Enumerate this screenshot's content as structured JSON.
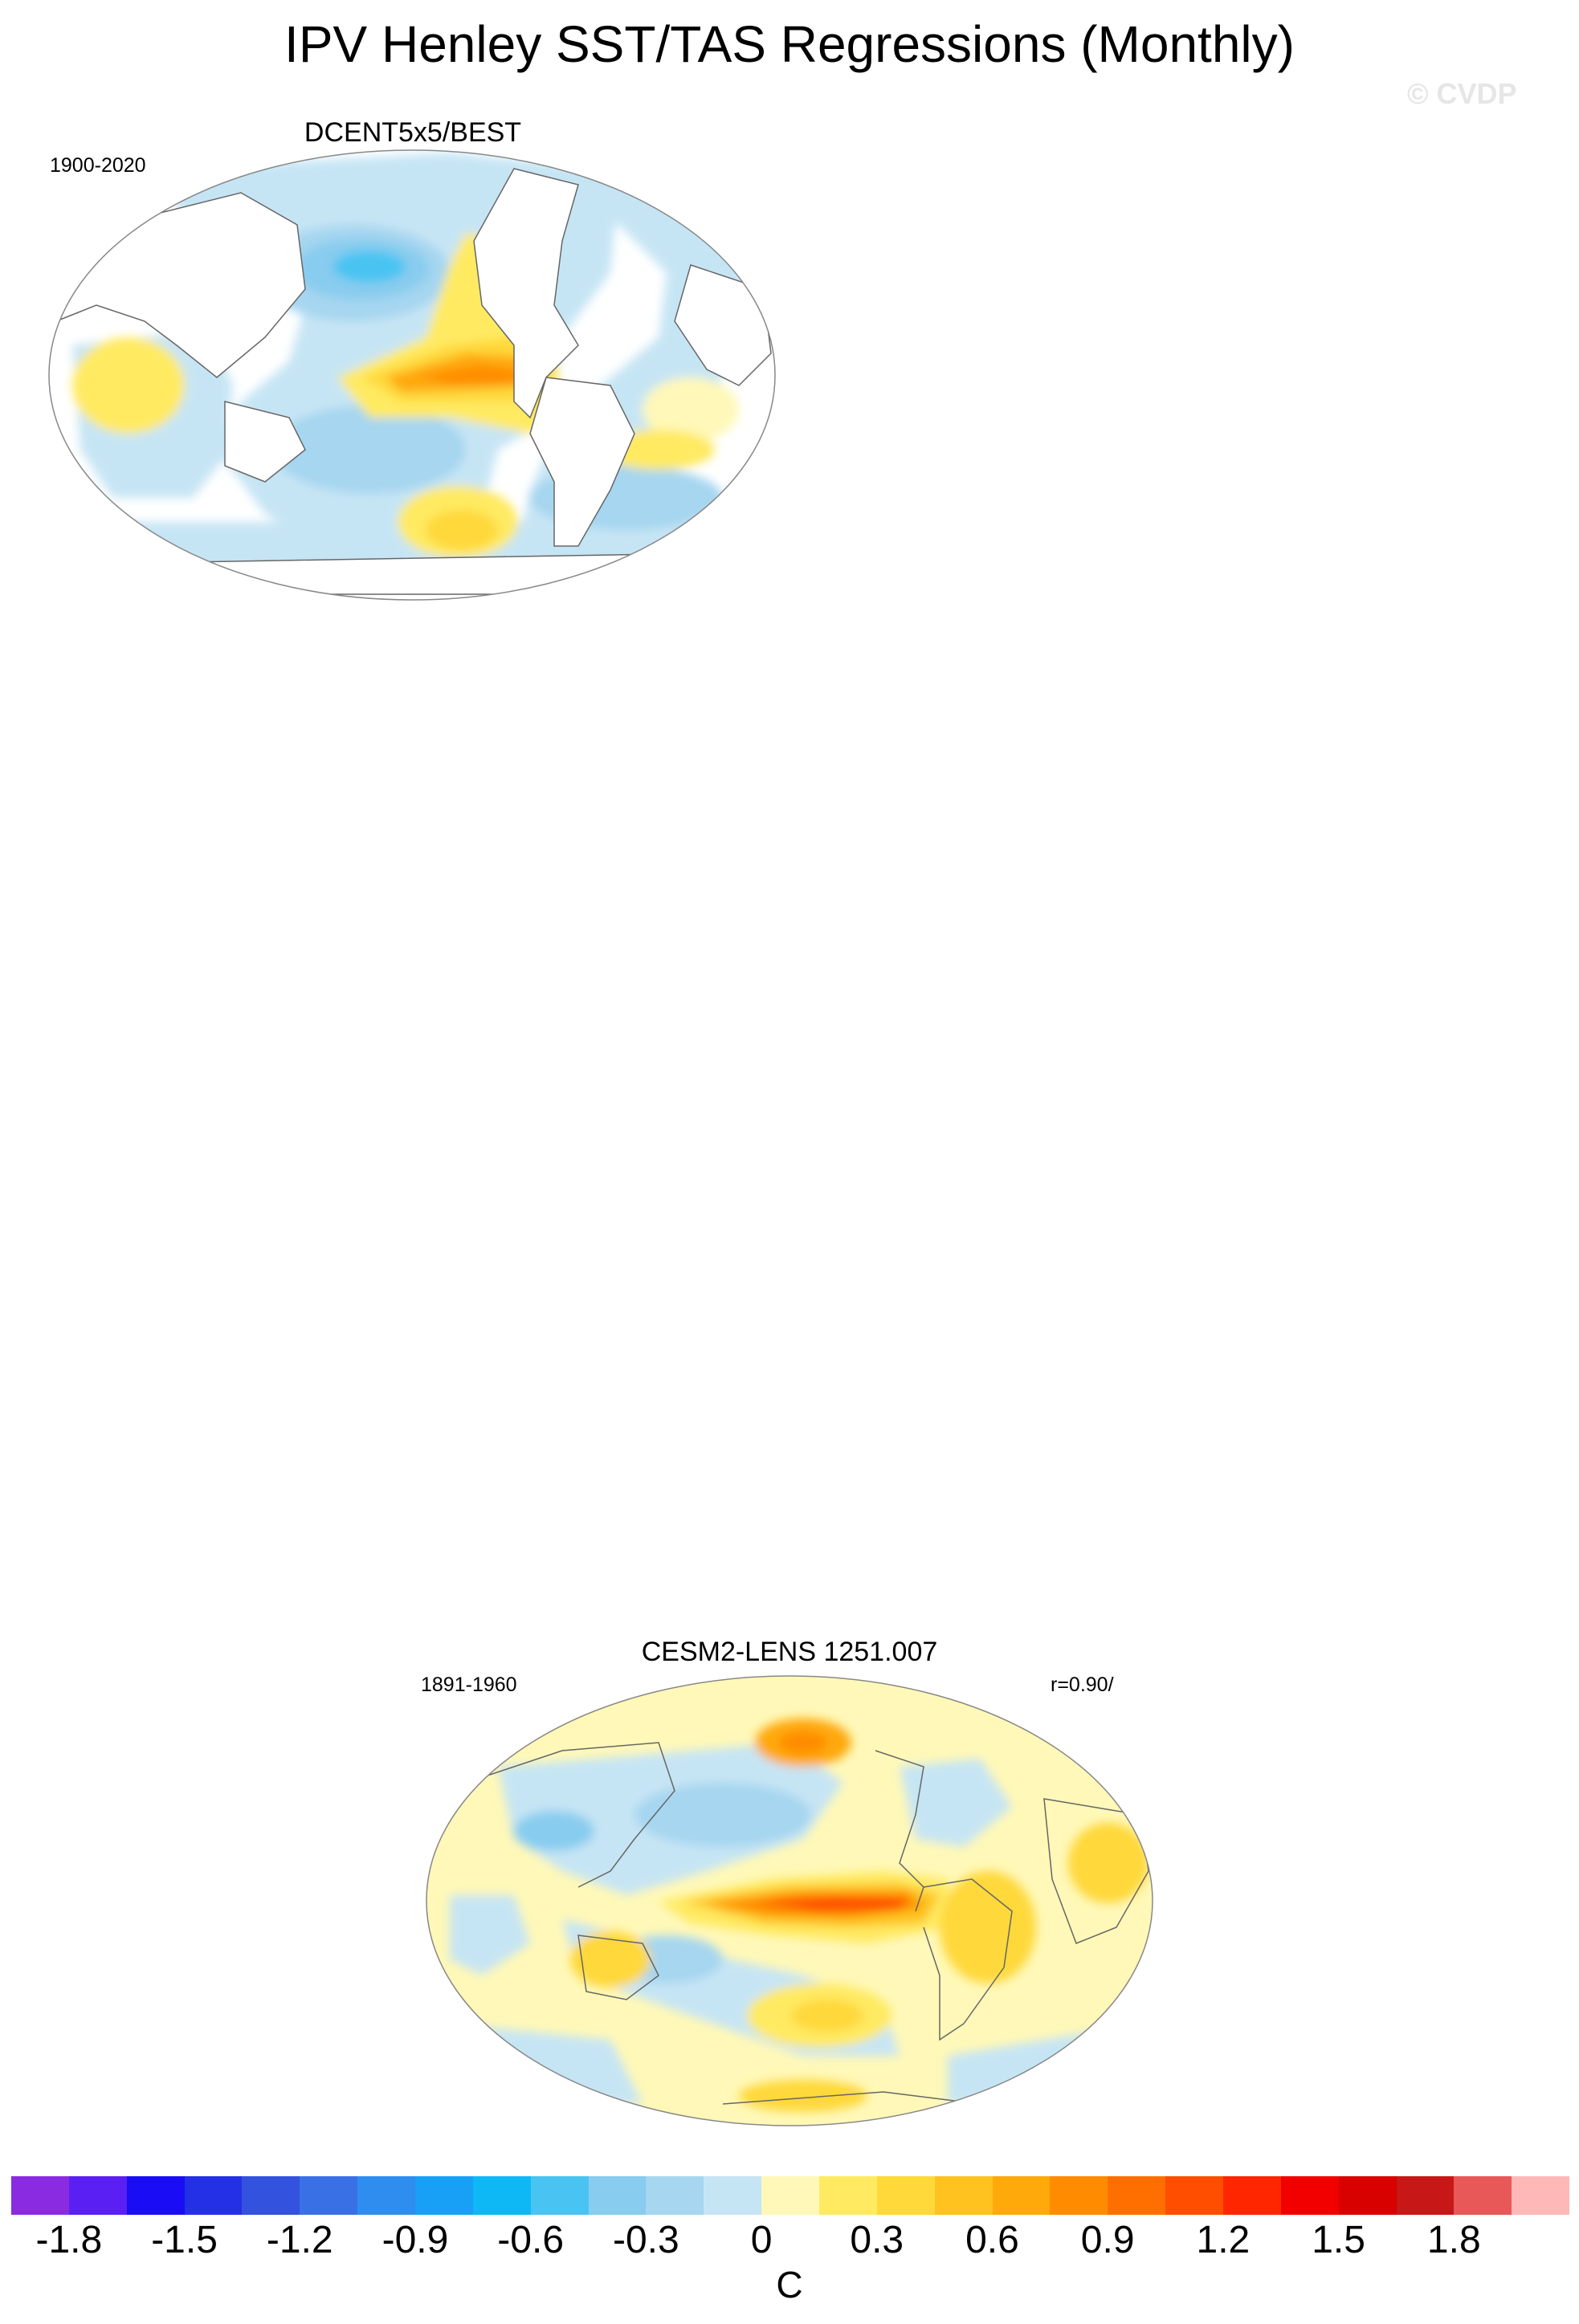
{
  "figure": {
    "title": "IPV Henley SST/TAS Regressions (Monthly)",
    "watermark": "© CVDP"
  },
  "panels": [
    {
      "title": "DCENT5x5/BEST",
      "years": "1900-2020",
      "stat": ""
    },
    {
      "title": "CESM2-LENS 1251.007",
      "years": "1891-1960",
      "stat": "r=0.90/"
    }
  ],
  "colorbar": {
    "units": "C",
    "colors": [
      "#8a2be2",
      "#5a1ff2",
      "#1a0cf5",
      "#2430e6",
      "#3352dd",
      "#3a70e6",
      "#2f8df0",
      "#17a0f5",
      "#0db8f5",
      "#49c4f2",
      "#88ccef",
      "#a6d6f0",
      "#c6e5f4",
      "#fff8b8",
      "#ffea62",
      "#ffd83a",
      "#ffc21f",
      "#ffa90a",
      "#ff8c00",
      "#ff6f00",
      "#ff4e00",
      "#ff2600",
      "#f20000",
      "#d90000",
      "#c81717",
      "#e85858",
      "#ffb8b8"
    ],
    "tick_labels": [
      "-1.8",
      "-1.5",
      "-1.2",
      "-0.9",
      "-0.6",
      "-0.3",
      "0",
      "0.3",
      "0.6",
      "0.9",
      "1.2",
      "1.5",
      "1.8"
    ]
  },
  "map_palette": {
    "ocean_pale_blue": "#c6e5f4",
    "ocean_blue": "#a6d6f0",
    "ocean_mid_blue": "#88ccef",
    "ocean_deep_blue": "#49c4f2",
    "pale_yellow": "#fff8b8",
    "yellow": "#ffea62",
    "gold": "#ffd83a",
    "orange_light": "#ffc21f",
    "orange": "#ffa90a",
    "orange_dark": "#ff8c00",
    "red_orange": "#ff4e00",
    "land": "#ffffff",
    "outline": "#666666"
  }
}
